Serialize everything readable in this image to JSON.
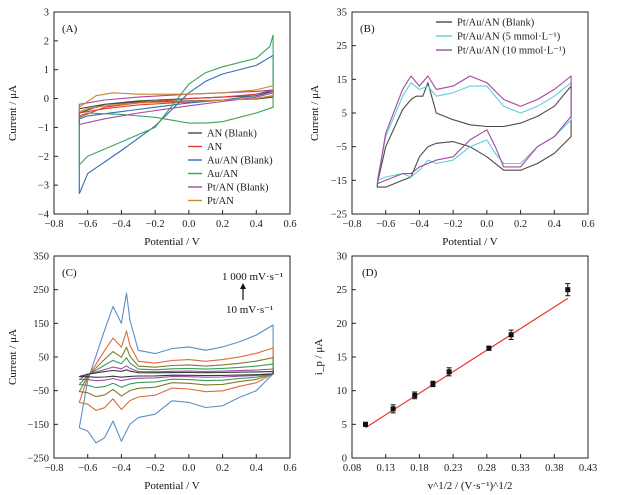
{
  "chart_data": [
    {
      "panel_label": "(A)",
      "type": "line",
      "xlabel": "Potential / V",
      "ylabel": "Current / μA",
      "xlim": [
        -0.8,
        0.6
      ],
      "ylim": [
        -4,
        3
      ],
      "xticks": [
        -0.8,
        -0.6,
        -0.4,
        -0.2,
        0.0,
        0.2,
        0.4,
        0.6
      ],
      "yticks": [
        -4,
        -3,
        -2,
        -1,
        0,
        1,
        2,
        3
      ],
      "xtick_labels": [
        "−0.8",
        "−0.6",
        "−0.4",
        "−0.2",
        "0.0",
        "0.2",
        "0.4",
        "0.6"
      ],
      "ytick_labels": [
        "−4",
        "−3",
        "−2",
        "−1",
        "0",
        "1",
        "2",
        "3"
      ],
      "legend_position": "lower-right",
      "series": [
        {
          "name": "AN (Blank)",
          "color": "#4a4a4a",
          "x": [
            -0.65,
            -0.5,
            -0.3,
            0.0,
            0.2,
            0.4,
            0.5,
            0.5,
            0.4,
            0.2,
            0.0,
            -0.3,
            -0.5,
            -0.65,
            -0.65
          ],
          "y": [
            -0.5,
            -0.2,
            -0.08,
            0.0,
            0.05,
            0.1,
            0.25,
            0.05,
            -0.02,
            -0.05,
            -0.08,
            -0.12,
            -0.2,
            -0.35,
            -0.5
          ]
        },
        {
          "name": "AN",
          "color": "#e53935",
          "x": [
            -0.65,
            -0.5,
            -0.3,
            0.0,
            0.2,
            0.4,
            0.5,
            0.5,
            0.4,
            0.2,
            0.0,
            -0.3,
            -0.5,
            -0.65,
            -0.65
          ],
          "y": [
            -0.65,
            -0.3,
            -0.15,
            0.0,
            0.05,
            0.15,
            0.3,
            0.1,
            0.0,
            -0.05,
            -0.12,
            -0.22,
            -0.35,
            -0.5,
            -0.65
          ]
        },
        {
          "name": "Au/AN (Blank)",
          "color": "#2f6fb3",
          "x": [
            -0.65,
            -0.6,
            -0.4,
            -0.2,
            0.0,
            0.1,
            0.2,
            0.4,
            0.5,
            0.5,
            0.4,
            0.2,
            0.0,
            -0.2,
            -0.4,
            -0.6,
            -0.65,
            -0.65
          ],
          "y": [
            -3.3,
            -2.6,
            -1.8,
            -0.95,
            0.2,
            0.6,
            0.85,
            1.15,
            1.5,
            0.3,
            0.1,
            -0.05,
            -0.15,
            -0.3,
            -0.45,
            -0.6,
            -0.7,
            -3.3
          ]
        },
        {
          "name": "Au/AN",
          "color": "#3aa35a",
          "x": [
            -0.65,
            -0.6,
            -0.4,
            -0.2,
            0.0,
            0.1,
            0.2,
            0.4,
            0.48,
            0.5,
            0.5,
            0.4,
            0.2,
            0.1,
            0.0,
            -0.2,
            -0.4,
            -0.6,
            -0.65,
            -0.65
          ],
          "y": [
            -2.3,
            -2.0,
            -1.5,
            -1.0,
            0.5,
            0.9,
            1.1,
            1.4,
            1.8,
            2.2,
            -0.3,
            -0.5,
            -0.8,
            -0.85,
            -0.85,
            -0.65,
            -0.55,
            -0.5,
            -0.6,
            -2.3
          ]
        },
        {
          "name": "Pt/AN (Blank)",
          "color": "#a349a4",
          "x": [
            -0.65,
            -0.5,
            -0.3,
            0.0,
            0.2,
            0.4,
            0.5,
            0.5,
            0.4,
            0.2,
            0.0,
            -0.3,
            -0.5,
            -0.65,
            -0.65
          ],
          "y": [
            -0.9,
            -0.7,
            -0.5,
            -0.25,
            -0.1,
            0.05,
            0.2,
            0.3,
            0.25,
            0.2,
            0.15,
            0.05,
            -0.05,
            -0.2,
            -0.9
          ]
        },
        {
          "name": "Pt/AN",
          "color": "#c9862b",
          "x": [
            -0.65,
            -0.55,
            -0.45,
            -0.3,
            0.0,
            0.2,
            0.4,
            0.5,
            0.5,
            0.4,
            0.2,
            0.0,
            -0.3,
            -0.5,
            -0.6,
            -0.65,
            -0.65
          ],
          "y": [
            -0.3,
            0.1,
            0.2,
            0.15,
            0.15,
            0.2,
            0.3,
            0.45,
            0.1,
            0.0,
            -0.05,
            -0.1,
            -0.15,
            -0.25,
            -0.35,
            -0.45,
            -0.3
          ]
        }
      ]
    },
    {
      "panel_label": "(B)",
      "type": "line",
      "xlabel": "Potential / V",
      "ylabel": "Current / μA",
      "xlim": [
        -0.8,
        0.6
      ],
      "ylim": [
        -25,
        35
      ],
      "xticks": [
        -0.8,
        -0.6,
        -0.4,
        -0.2,
        0.0,
        0.2,
        0.4,
        0.6
      ],
      "yticks": [
        -25,
        -15,
        -5,
        5,
        15,
        25,
        35
      ],
      "xtick_labels": [
        "−0.8",
        "−0.6",
        "−0.4",
        "−0.2",
        "0.0",
        "0.2",
        "0.4",
        "0.6"
      ],
      "ytick_labels": [
        "−25",
        "−15",
        "−5",
        "5",
        "15",
        "25",
        "35"
      ],
      "legend_position": "top-right",
      "series": [
        {
          "name": "Pt/Au/AN (Blank)",
          "color": "#4a4a4a",
          "x": [
            -0.65,
            -0.6,
            -0.5,
            -0.45,
            -0.42,
            -0.38,
            -0.35,
            -0.3,
            -0.2,
            -0.1,
            0.0,
            0.1,
            0.2,
            0.3,
            0.4,
            0.5,
            0.5,
            0.4,
            0.3,
            0.2,
            0.1,
            0.0,
            -0.1,
            -0.2,
            -0.3,
            -0.35,
            -0.4,
            -0.45,
            -0.5,
            -0.55,
            -0.6,
            -0.65,
            -0.65
          ],
          "y": [
            -16,
            -5,
            6,
            9,
            10,
            10,
            14,
            5,
            3,
            1.5,
            1,
            1,
            2,
            4,
            7,
            13,
            -2,
            -7,
            -10,
            -12,
            -12,
            -8,
            -5,
            -3.5,
            -4,
            -5,
            -8,
            -14,
            -15,
            -16,
            -17,
            -17,
            -16
          ]
        },
        {
          "name": "Pt/Au/AN (5 mmol·L⁻¹)",
          "color": "#5fd0d6",
          "x": [
            -0.65,
            -0.6,
            -0.5,
            -0.45,
            -0.4,
            -0.35,
            -0.3,
            -0.2,
            -0.1,
            0.0,
            0.1,
            0.2,
            0.3,
            0.4,
            0.5,
            0.5,
            0.4,
            0.3,
            0.2,
            0.1,
            0.05,
            0.0,
            -0.1,
            -0.2,
            -0.3,
            -0.35,
            -0.4,
            -0.45,
            -0.5,
            -0.6,
            -0.65,
            -0.65
          ],
          "y": [
            -15,
            -2,
            10,
            14,
            12,
            13,
            10,
            11,
            13,
            13,
            7,
            5,
            7,
            10,
            14,
            3,
            -2,
            -5,
            -10,
            -10,
            -7,
            -3,
            -5,
            -9,
            -10,
            -9,
            -12,
            -14,
            -13,
            -14,
            -15,
            -15
          ]
        },
        {
          "name": "Pt/Au/AN (10 mmol·L⁻¹)",
          "color": "#a349a4",
          "x": [
            -0.65,
            -0.6,
            -0.5,
            -0.45,
            -0.4,
            -0.35,
            -0.3,
            -0.2,
            -0.1,
            0.0,
            0.1,
            0.2,
            0.3,
            0.4,
            0.5,
            0.5,
            0.4,
            0.3,
            0.2,
            0.1,
            0.05,
            0.0,
            -0.1,
            -0.2,
            -0.3,
            -0.35,
            -0.4,
            -0.45,
            -0.5,
            -0.6,
            -0.65,
            -0.65
          ],
          "y": [
            -16,
            -1,
            12,
            16,
            13,
            16,
            12,
            13,
            16,
            14,
            9,
            7,
            9,
            12,
            16,
            4,
            -2,
            -5,
            -11,
            -11,
            -5,
            0,
            -3,
            -8,
            -9,
            -10,
            -11,
            -13,
            -13,
            -15,
            -16,
            -16
          ]
        }
      ]
    },
    {
      "panel_label": "(C)",
      "type": "line",
      "xlabel": "Potential / V",
      "ylabel": "Current / μA",
      "xlim": [
        -0.8,
        0.6
      ],
      "ylim": [
        -250,
        350
      ],
      "xticks": [
        -0.8,
        -0.6,
        -0.4,
        -0.2,
        0.0,
        0.2,
        0.4,
        0.6
      ],
      "yticks": [
        -250,
        -150,
        -50,
        50,
        150,
        250,
        350
      ],
      "xtick_labels": [
        "−0.8",
        "−0.6",
        "−0.4",
        "−0.2",
        "0.0",
        "0.2",
        "0.4",
        "0.6"
      ],
      "ytick_labels": [
        "−250",
        "−150",
        "−50",
        "50",
        "150",
        "250",
        "350"
      ],
      "annotations": {
        "top": "1 000 mV·s⁻¹",
        "bottom": "10 mV·s⁻¹"
      },
      "scan_rate_scale_factors": [
        1.0,
        0.53,
        0.33,
        0.2,
        0.1,
        0.05
      ],
      "base_forward": {
        "x": [
          -0.65,
          -0.6,
          -0.5,
          -0.45,
          -0.4,
          -0.37,
          -0.35,
          -0.3,
          -0.2,
          -0.1,
          0.0,
          0.1,
          0.2,
          0.3,
          0.4,
          0.5
        ],
        "y": [
          -160,
          -20,
          130,
          200,
          150,
          240,
          160,
          70,
          60,
          75,
          80,
          70,
          80,
          95,
          115,
          145
        ]
      },
      "base_reverse": {
        "x": [
          0.5,
          0.4,
          0.3,
          0.2,
          0.1,
          0.0,
          -0.1,
          -0.2,
          -0.3,
          -0.35,
          -0.4,
          -0.45,
          -0.5,
          -0.55,
          -0.6,
          -0.65
        ],
        "y": [
          0,
          -50,
          -70,
          -95,
          -100,
          -85,
          -80,
          -120,
          -130,
          -150,
          -200,
          -140,
          -190,
          -205,
          -170,
          -160
        ]
      },
      "series": [
        {
          "color": "#5b8fc8"
        },
        {
          "color": "#e06a3b"
        },
        {
          "color": "#7d7d2e"
        },
        {
          "color": "#3e9a5a"
        },
        {
          "color": "#9a4fa8"
        },
        {
          "color": "#3a3a3a"
        }
      ]
    },
    {
      "panel_label": "(D)",
      "type": "scatter",
      "xlabel": "v^1/2 / (V·s⁻¹)^1/2",
      "ylabel": "i_p / μA",
      "xlim": [
        0.08,
        0.43
      ],
      "ylim": [
        0,
        30
      ],
      "xticks": [
        0.08,
        0.13,
        0.18,
        0.23,
        0.28,
        0.33,
        0.38,
        0.43
      ],
      "yticks": [
        0,
        5,
        10,
        15,
        20,
        25,
        30
      ],
      "xtick_labels": [
        "0.08",
        "0.13",
        "0.18",
        "0.23",
        "0.28",
        "0.33",
        "0.38",
        "0.43"
      ],
      "ytick_labels": [
        "0",
        "5",
        "10",
        "15",
        "20",
        "25",
        "30"
      ],
      "x": [
        0.1,
        0.141,
        0.173,
        0.2,
        0.224,
        0.283,
        0.316,
        0.4
      ],
      "y": [
        5.0,
        7.3,
        9.3,
        11.0,
        12.8,
        16.3,
        18.3,
        25.0
      ],
      "error": [
        0.3,
        0.6,
        0.5,
        0.4,
        0.6,
        0.3,
        0.7,
        0.9
      ],
      "fit_line": {
        "x": [
          0.1,
          0.4
        ],
        "y": [
          4.5,
          23.7
        ],
        "color": "#e53935"
      }
    }
  ]
}
